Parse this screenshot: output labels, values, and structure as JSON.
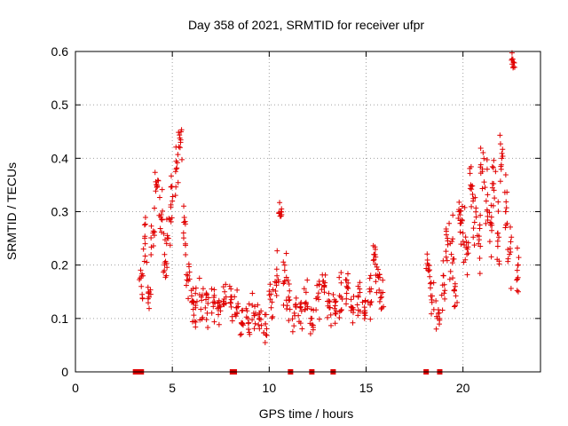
{
  "chart_data": {
    "type": "scatter",
    "title": "Day 358 of 2021, SRMTID for receiver ufpr",
    "xlabel": "GPS time / hours",
    "ylabel": "SRMTID / TECUs",
    "xlim": [
      0,
      24
    ],
    "ylim": [
      0,
      0.6
    ],
    "xticks": [
      0,
      5,
      10,
      15,
      20
    ],
    "xtick_labels": [
      "0",
      "5",
      "10",
      "15",
      "20"
    ],
    "yticks": [
      0,
      0.1,
      0.2,
      0.3,
      0.4,
      0.5,
      0.6
    ],
    "ytick_labels": [
      "0",
      "0.1",
      "0.2",
      "0.3",
      "0.4",
      "0.5",
      "0.6"
    ],
    "grid": true,
    "marker": "plus",
    "series": [
      {
        "name": "SRMTID",
        "color": "#e00000",
        "x": [
          3.4,
          3.6,
          3.8,
          4.0,
          4.2,
          4.4,
          4.6,
          4.8,
          5.0,
          5.2,
          5.4,
          5.6,
          5.8,
          6.0,
          6.2,
          6.5,
          6.8,
          7.1,
          7.4,
          7.7,
          8.0,
          8.3,
          8.6,
          8.9,
          9.2,
          9.5,
          9.8,
          10.1,
          10.4,
          10.6,
          10.8,
          11.0,
          11.3,
          11.6,
          11.9,
          12.2,
          12.5,
          12.8,
          13.1,
          13.4,
          13.7,
          14.0,
          14.3,
          14.6,
          14.9,
          15.2,
          15.4,
          15.6,
          15.8,
          18.2,
          18.4,
          18.7,
          19.0,
          19.2,
          19.4,
          19.6,
          19.8,
          20.0,
          20.2,
          20.4,
          20.6,
          20.8,
          21.0,
          21.2,
          21.4,
          21.6,
          21.8,
          22.0,
          22.2,
          22.4,
          22.6,
          22.8
        ],
        "y": [
          0.16,
          0.24,
          0.14,
          0.26,
          0.35,
          0.29,
          0.2,
          0.25,
          0.32,
          0.38,
          0.42,
          0.28,
          0.18,
          0.13,
          0.12,
          0.14,
          0.11,
          0.13,
          0.12,
          0.15,
          0.13,
          0.12,
          0.09,
          0.1,
          0.11,
          0.1,
          0.09,
          0.12,
          0.18,
          0.3,
          0.19,
          0.14,
          0.11,
          0.12,
          0.13,
          0.1,
          0.14,
          0.17,
          0.12,
          0.11,
          0.14,
          0.16,
          0.12,
          0.14,
          0.11,
          0.15,
          0.22,
          0.18,
          0.14,
          0.2,
          0.13,
          0.1,
          0.18,
          0.25,
          0.22,
          0.16,
          0.3,
          0.26,
          0.22,
          0.35,
          0.28,
          0.24,
          0.38,
          0.32,
          0.28,
          0.34,
          0.26,
          0.4,
          0.3,
          0.22,
          0.58,
          0.19
        ],
        "spread": [
          0.06,
          0.06,
          0.05,
          0.06,
          0.05,
          0.06,
          0.06,
          0.06,
          0.06,
          0.05,
          0.04,
          0.07,
          0.05,
          0.05,
          0.05,
          0.05,
          0.05,
          0.05,
          0.05,
          0.05,
          0.04,
          0.04,
          0.03,
          0.04,
          0.04,
          0.04,
          0.04,
          0.05,
          0.06,
          0.02,
          0.08,
          0.05,
          0.04,
          0.05,
          0.05,
          0.04,
          0.05,
          0.05,
          0.05,
          0.04,
          0.05,
          0.05,
          0.05,
          0.05,
          0.04,
          0.06,
          0.05,
          0.06,
          0.05,
          0.04,
          0.05,
          0.04,
          0.07,
          0.06,
          0.08,
          0.06,
          0.07,
          0.08,
          0.07,
          0.07,
          0.08,
          0.07,
          0.08,
          0.08,
          0.08,
          0.08,
          0.07,
          0.07,
          0.08,
          0.08,
          0.03,
          0.05
        ]
      }
    ],
    "gaps_at_zero": [
      3.1,
      3.2,
      3.3,
      3.4,
      8.1,
      8.2,
      11.1,
      12.2,
      13.3,
      18.1,
      18.8
    ]
  }
}
